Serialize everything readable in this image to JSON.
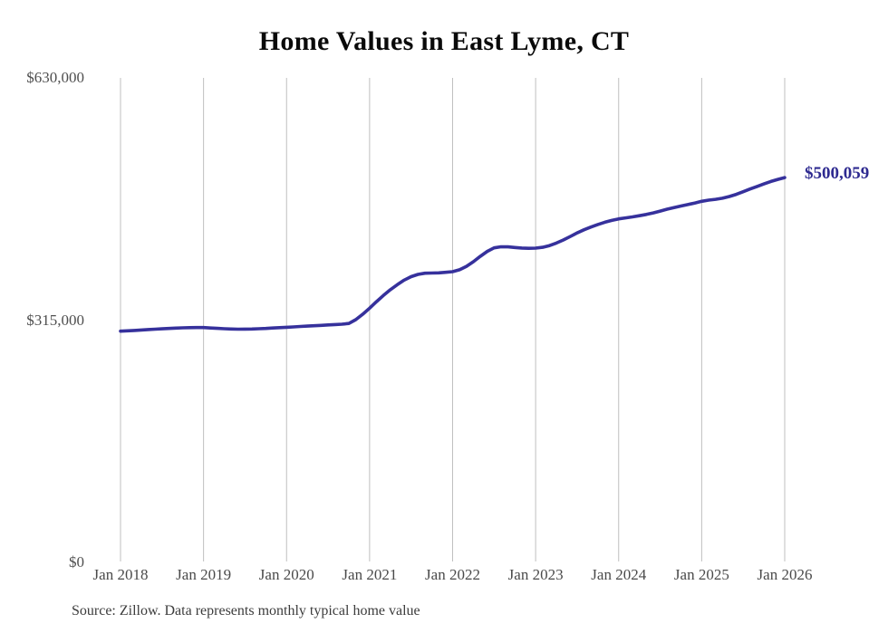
{
  "chart": {
    "title": "Home Values in East Lyme, CT"
  },
  "chart_data": {
    "type": "line",
    "title": "Home Values in East Lyme, CT",
    "series_name": "Monthly typical home value",
    "frequency": "monthly",
    "x_start": "2018-01",
    "x_end": "2026-01",
    "x_tick_labels": [
      "Jan 2018",
      "Jan 2019",
      "Jan 2020",
      "Jan 2021",
      "Jan 2022",
      "Jan 2023",
      "Jan 2024",
      "Jan 2025",
      "Jan 2026"
    ],
    "y_tick_labels": [
      "$630,000",
      "$315,000",
      "$0"
    ],
    "ylim": [
      0,
      630000
    ],
    "values": [
      300000,
      300500,
      301000,
      301600,
      302100,
      302600,
      303100,
      303600,
      304000,
      304400,
      304600,
      304700,
      304700,
      304200,
      303700,
      303200,
      302800,
      302600,
      302700,
      302900,
      303200,
      303600,
      304100,
      304600,
      305100,
      305600,
      306100,
      306600,
      307100,
      307600,
      308100,
      308600,
      309100,
      310000,
      315000,
      322000,
      330000,
      338500,
      346500,
      354000,
      360500,
      366500,
      371000,
      374000,
      375500,
      375800,
      376000,
      376700,
      377500,
      380000,
      384500,
      390500,
      397500,
      404000,
      408500,
      410000,
      409800,
      409000,
      408300,
      408000,
      408200,
      409300,
      411500,
      414800,
      418800,
      423300,
      428000,
      432200,
      435700,
      439000,
      441900,
      444300,
      446300,
      447600,
      448900,
      450400,
      452100,
      454100,
      456400,
      458900,
      461100,
      463100,
      465000,
      467000,
      469200,
      470700,
      471800,
      473200,
      475400,
      478300,
      481700,
      485200,
      488500,
      491800,
      495000,
      497800,
      500059
    ],
    "end_label": "$500,059",
    "end_value": 500059,
    "line_color": "#36319c",
    "gridline_color": "#bfbfbf",
    "grid": "vertical gridlines at each January tick",
    "legend_position": "none"
  },
  "source": {
    "text": "Source: Zillow. Data represents monthly typical home value"
  }
}
